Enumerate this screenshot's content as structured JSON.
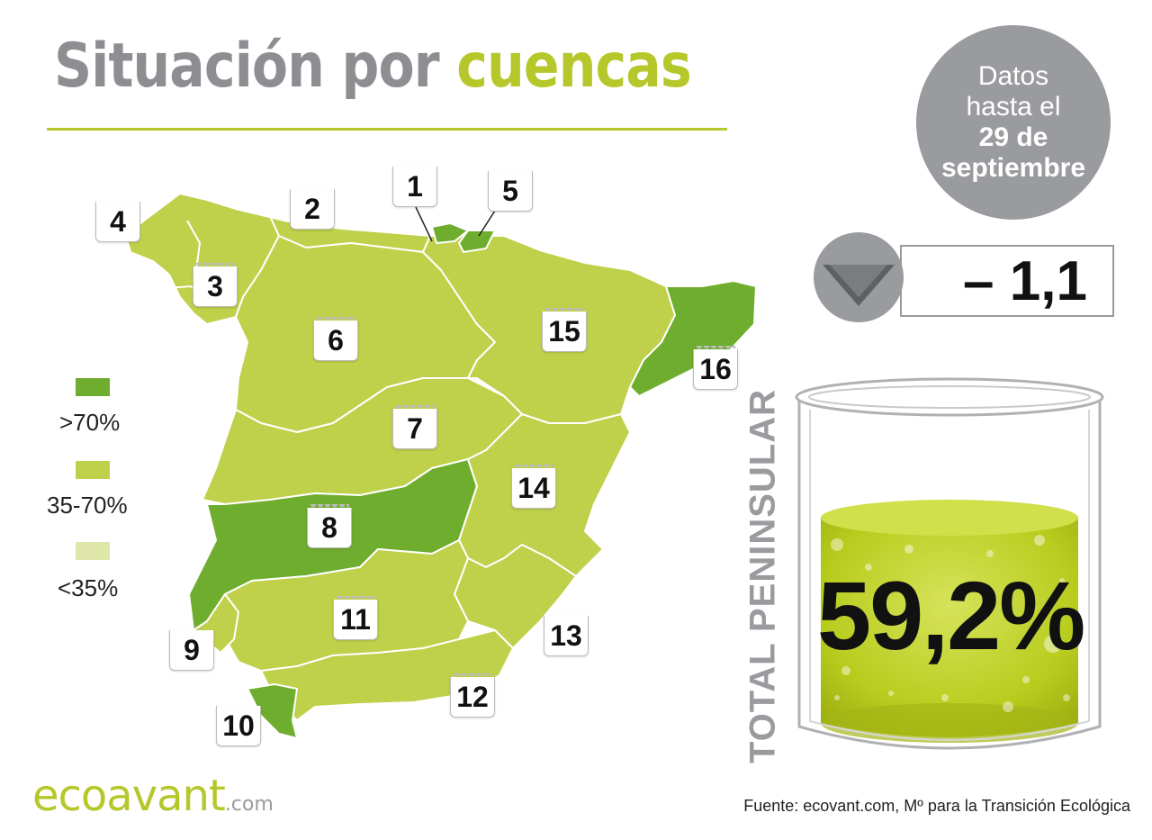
{
  "title": {
    "part1": "Situación por",
    "part2": "cuencas"
  },
  "date_badge": {
    "line1": "Datos",
    "line2": "hasta el",
    "line3": "29 de",
    "line4": "septiembre"
  },
  "change": {
    "value": "– 1,1",
    "direction": "down"
  },
  "legend": [
    {
      "label": ">70%",
      "color": "#6fad2e"
    },
    {
      "label": "35-70%",
      "color": "#bfd04a"
    },
    {
      "label": "<35%",
      "color": "#dfe6aa"
    }
  ],
  "basins": [
    {
      "number": "1",
      "level": ">70%"
    },
    {
      "number": "2",
      "level": "35-70%"
    },
    {
      "number": "3",
      "level": "35-70%"
    },
    {
      "number": "4",
      "level": "35-70%"
    },
    {
      "number": "5",
      "level": ">70%"
    },
    {
      "number": "6",
      "level": "35-70%"
    },
    {
      "number": "7",
      "level": "35-70%"
    },
    {
      "number": "8",
      "level": ">70%"
    },
    {
      "number": "9",
      "level": ">70%"
    },
    {
      "number": "10",
      "level": ">70%"
    },
    {
      "number": "11",
      "level": "35-70%"
    },
    {
      "number": "12",
      "level": "35-70%"
    },
    {
      "number": "13",
      "level": "35-70%"
    },
    {
      "number": "14",
      "level": "35-70%"
    },
    {
      "number": "15",
      "level": "35-70%"
    },
    {
      "number": "16",
      "level": ">70%"
    }
  ],
  "total": {
    "label": "TOTAL PENINSULAR",
    "value": "59,2%",
    "fill_fraction": 0.59
  },
  "logo": {
    "name": "ecoavant",
    "domain": ".com"
  },
  "source": "Fuente: ecovant.com, Mº para la Transición Ecológica",
  "colors": {
    "accent": "#b5c72a",
    "gray": "#9a9b9e",
    "high": "#6fad2e",
    "mid": "#bfd04a",
    "low": "#dfe6aa"
  }
}
